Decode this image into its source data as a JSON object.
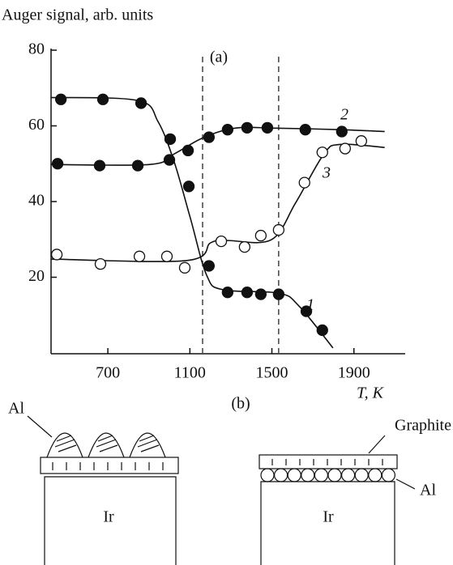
{
  "chart_data": {
    "type": "scatter",
    "ylabel": "Auger signal, arb. units",
    "xlabel": "T, K",
    "panel_label": "(a)",
    "xlim": [
      423,
      2150
    ],
    "ylim": [
      0,
      80
    ],
    "xticks": [
      700,
      1100,
      1500,
      1900
    ],
    "yticks": [
      20,
      40,
      60,
      80
    ],
    "reference_lines": [
      1162,
      1533
    ],
    "series": [
      {
        "name": "1",
        "color": "#111111",
        "filled": true,
        "x": [
          471,
          676,
          862,
          1004,
          1095,
          1193,
          1284,
          1379,
          1446,
          1533,
          1668,
          1746
        ],
        "values": [
          67,
          67,
          66,
          56.5,
          44,
          23,
          16,
          16,
          15.5,
          15.5,
          11,
          6
        ],
        "curve_x": [
          423,
          846,
          945,
          1024,
          1103,
          1182,
          1261,
          1533,
          1632,
          1798
        ],
        "curve_values": [
          67.5,
          66.7,
          61.1,
          50.4,
          35.5,
          20.5,
          16.7,
          15.8,
          12.4,
          1.3
        ]
      },
      {
        "name": "2",
        "color": "#111111",
        "filled": true,
        "x": [
          455,
          660,
          846,
          1000,
          1091,
          1193,
          1284,
          1379,
          1478,
          1663,
          1841
        ],
        "values": [
          50,
          49.5,
          49.5,
          51,
          53.5,
          57,
          59,
          59.5,
          59.5,
          59,
          58.5
        ],
        "curve_x": [
          423,
          905,
          1024,
          1162,
          1320,
          1517,
          1833,
          2050
        ],
        "curve_values": [
          49.8,
          49.8,
          52.6,
          56.8,
          59.4,
          59.4,
          59.0,
          58.5
        ]
      },
      {
        "name": "3",
        "color": "#111111",
        "filled": false,
        "x": [
          451,
          664,
          854,
          988,
          1075,
          1253,
          1367,
          1446,
          1533,
          1659,
          1746,
          1857,
          1936
        ],
        "values": [
          26,
          23.5,
          25.5,
          25.5,
          22.5,
          29.5,
          28,
          31,
          32.5,
          45,
          53,
          54,
          56
        ],
        "curve_x": [
          423,
          1083,
          1201,
          1280,
          1497,
          1616,
          1754,
          1833,
          2050
        ],
        "curve_values": [
          24.8,
          24.4,
          29.1,
          29.7,
          29.9,
          39.7,
          52.6,
          55.1,
          54.3
        ]
      }
    ]
  },
  "diagram": {
    "label": "(b)",
    "left": {
      "top_label": "Al",
      "substrate": "Ir"
    },
    "right": {
      "top_label": "Graphite",
      "side_label": "Al",
      "substrate": "Ir"
    }
  }
}
